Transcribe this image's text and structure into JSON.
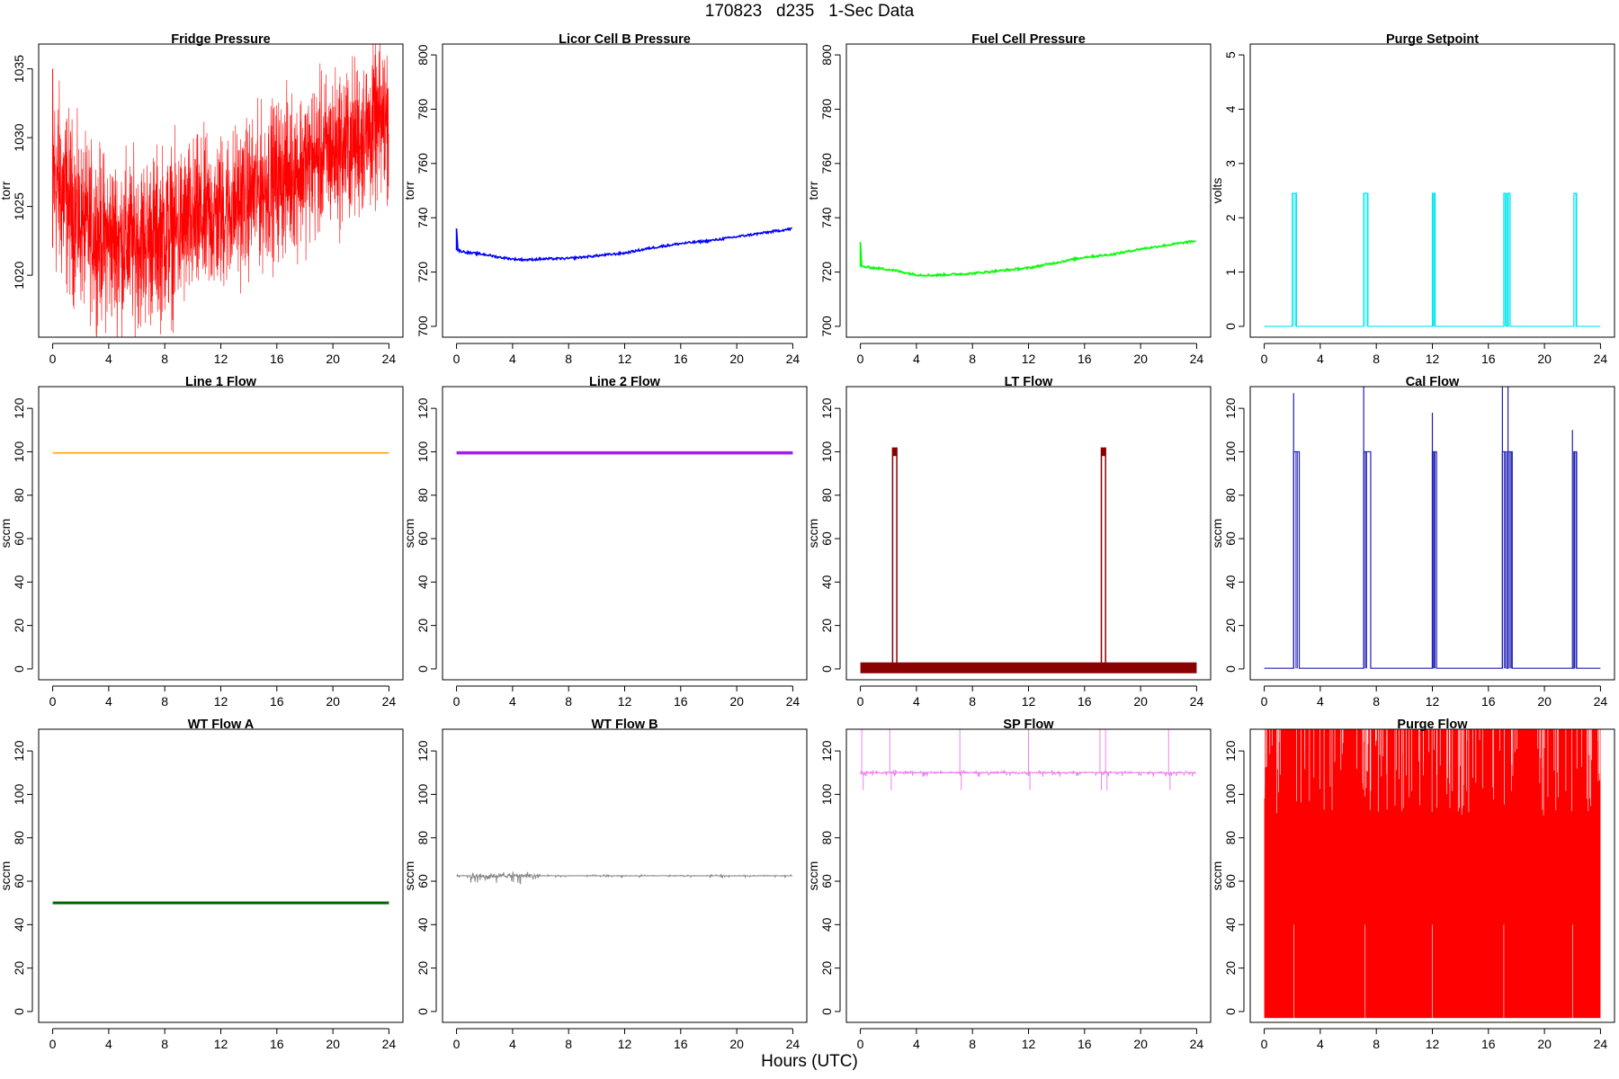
{
  "page": {
    "title": "170823   d235   1-Sec Data",
    "xlabel": "Hours (UTC)"
  },
  "chart_data": [
    {
      "type": "line",
      "title": "Fridge Pressure",
      "ylabel": "torr",
      "color": "#ff0000",
      "style": "noise",
      "xlim": [
        -1,
        25
      ],
      "ylim": [
        1015.5,
        1036.8
      ],
      "xticks": [
        0,
        4,
        8,
        12,
        16,
        20,
        24
      ],
      "yticks": [
        1020,
        1025,
        1030,
        1035
      ],
      "x": [
        0,
        2,
        4,
        6,
        8,
        10,
        12,
        14,
        16,
        18,
        20,
        22,
        24
      ],
      "upper": [
        1034.5,
        1029.5,
        1028.5,
        1028.3,
        1029,
        1029.5,
        1030,
        1031,
        1032.5,
        1033.5,
        1034.5,
        1035.5,
        1037
      ],
      "lower": [
        1020,
        1018,
        1016.5,
        1016.5,
        1017,
        1018,
        1019,
        1020.5,
        1021.5,
        1022.5,
        1023.5,
        1024.5,
        1026
      ]
    },
    {
      "type": "line",
      "title": "Licor Cell B Pressure",
      "ylabel": "torr",
      "color": "#0000ff",
      "style": "line",
      "xlim": [
        -1,
        25
      ],
      "ylim": [
        696,
        804
      ],
      "xticks": [
        0,
        4,
        8,
        12,
        16,
        20,
        24
      ],
      "yticks": [
        700,
        720,
        740,
        760,
        780,
        800
      ],
      "x": [
        0,
        0.1,
        0.5,
        1,
        2,
        3,
        4,
        5,
        6,
        8,
        10,
        12,
        14,
        16,
        18,
        20,
        22,
        24
      ],
      "y": [
        736,
        728,
        727.5,
        727,
        726.5,
        725.5,
        724.8,
        724.5,
        724.8,
        725,
        726,
        727,
        729,
        730.5,
        731.5,
        733,
        734.5,
        736
      ]
    },
    {
      "type": "line",
      "title": "Fuel Cell Pressure",
      "ylabel": "torr",
      "color": "#00ff00",
      "style": "line",
      "xlim": [
        -1,
        25
      ],
      "ylim": [
        696,
        804
      ],
      "xticks": [
        0,
        4,
        8,
        12,
        16,
        20,
        24
      ],
      "yticks": [
        700,
        720,
        740,
        760,
        780,
        800
      ],
      "x": [
        0,
        0.1,
        0.5,
        1,
        2,
        3,
        4,
        5,
        6,
        8,
        10,
        12,
        14,
        16,
        18,
        20,
        22,
        24
      ],
      "y": [
        731,
        722,
        721.8,
        721.5,
        721,
        720,
        719,
        718.8,
        719,
        719.5,
        720.5,
        721.5,
        723.5,
        725.5,
        726.5,
        728.5,
        730,
        731.5
      ]
    },
    {
      "type": "line",
      "title": "Purge Setpoint",
      "ylabel": "volts",
      "color": "#00e5ee",
      "style": "pulse",
      "xlim": [
        -1,
        25
      ],
      "ylim": [
        -0.2,
        5.2
      ],
      "xticks": [
        0,
        4,
        8,
        12,
        16,
        20,
        24
      ],
      "yticks": [
        0,
        1,
        2,
        3,
        4,
        5
      ],
      "base": 0,
      "pulses": [
        [
          2.0,
          2.3,
          2.45
        ],
        [
          7.1,
          7.4,
          2.45
        ],
        [
          12.0,
          12.2,
          2.45
        ],
        [
          17.1,
          17.3,
          2.45
        ],
        [
          17.4,
          17.55,
          2.45
        ],
        [
          22.1,
          22.3,
          2.45
        ]
      ]
    },
    {
      "type": "line",
      "title": "Line 1 Flow",
      "ylabel": "sccm",
      "color": "#ffa500",
      "style": "flat",
      "xlim": [
        -1,
        25
      ],
      "ylim": [
        -5,
        130
      ],
      "xticks": [
        0,
        4,
        8,
        12,
        16,
        20,
        24
      ],
      "yticks": [
        0,
        20,
        40,
        60,
        80,
        100,
        120
      ],
      "y": 99.5,
      "width": 1.6
    },
    {
      "type": "line",
      "title": "Line 2 Flow",
      "ylabel": "sccm",
      "color": "#a020f0",
      "style": "flat",
      "xlim": [
        -1,
        25
      ],
      "ylim": [
        -5,
        130
      ],
      "xticks": [
        0,
        4,
        8,
        12,
        16,
        20,
        24
      ],
      "yticks": [
        0,
        20,
        40,
        60,
        80,
        100,
        120
      ],
      "y": 99.5,
      "width": 3.5
    },
    {
      "type": "line",
      "title": "LT Flow",
      "ylabel": "sccm",
      "color": "#8b0000",
      "style": "band-pulse",
      "xlim": [
        -1,
        25
      ],
      "ylim": [
        -5,
        130
      ],
      "xticks": [
        0,
        4,
        8,
        12,
        16,
        20,
        24
      ],
      "yticks": [
        0,
        20,
        40,
        60,
        80,
        100,
        120
      ],
      "band": [
        [
          0,
          0,
          3
        ],
        [
          24,
          0,
          3
        ]
      ],
      "pulses": [
        [
          2.3,
          2.6,
          102
        ],
        [
          17.2,
          17.5,
          102
        ]
      ]
    },
    {
      "type": "line",
      "title": "Cal Flow",
      "ylabel": "sccm",
      "color": "#1e1eb4",
      "style": "pulse",
      "xlim": [
        -1,
        25
      ],
      "ylim": [
        -5,
        130
      ],
      "xticks": [
        0,
        4,
        8,
        12,
        16,
        20,
        24
      ],
      "yticks": [
        0,
        20,
        40,
        60,
        80,
        100,
        120
      ],
      "base": 0.3,
      "pulses": [
        [
          2.1,
          2.5,
          100
        ],
        [
          7.1,
          7.6,
          100
        ],
        [
          12.0,
          12.3,
          100
        ],
        [
          17.0,
          17.3,
          100
        ],
        [
          17.4,
          17.7,
          100
        ],
        [
          22.1,
          22.3,
          100
        ]
      ],
      "spikes": [
        [
          2.1,
          127
        ],
        [
          7.1,
          131
        ],
        [
          12.0,
          118
        ],
        [
          17.0,
          131
        ],
        [
          17.4,
          131
        ],
        [
          22.0,
          110
        ]
      ]
    },
    {
      "type": "line",
      "title": "WT Flow A",
      "ylabel": "sccm",
      "color": "#006400",
      "style": "flat",
      "xlim": [
        -1,
        25
      ],
      "ylim": [
        -5,
        130
      ],
      "xticks": [
        0,
        4,
        8,
        12,
        16,
        20,
        24
      ],
      "yticks": [
        0,
        20,
        40,
        60,
        80,
        100,
        120
      ],
      "y": 50,
      "width": 3
    },
    {
      "type": "line",
      "title": "WT Flow B",
      "ylabel": "sccm",
      "color": "#888888",
      "style": "jitter",
      "xlim": [
        -1,
        25
      ],
      "ylim": [
        -5,
        130
      ],
      "xticks": [
        0,
        4,
        8,
        12,
        16,
        20,
        24
      ],
      "yticks": [
        0,
        20,
        40,
        60,
        80,
        100,
        120
      ],
      "y": 62.5,
      "amp": 4,
      "noisy_until": 6
    },
    {
      "type": "line",
      "title": "SP Flow",
      "ylabel": "sccm",
      "color": "#ee82ee",
      "style": "jitter-spikes",
      "xlim": [
        -1,
        25
      ],
      "ylim": [
        -5,
        130
      ],
      "xticks": [
        0,
        4,
        8,
        12,
        16,
        20,
        24
      ],
      "yticks": [
        0,
        20,
        40,
        60,
        80,
        100,
        120
      ],
      "y": 110,
      "amp": 4,
      "spikes": [
        [
          0.1,
          130
        ],
        [
          2.1,
          131
        ],
        [
          7.1,
          131
        ],
        [
          12.0,
          131
        ],
        [
          17.1,
          131
        ],
        [
          17.5,
          131
        ],
        [
          22.0,
          131
        ]
      ]
    },
    {
      "type": "line",
      "title": "Purge Flow",
      "ylabel": "sccm",
      "color": "#ff0000",
      "style": "fill",
      "xlim": [
        -1,
        25
      ],
      "ylim": [
        -5,
        130
      ],
      "xticks": [
        0,
        4,
        8,
        12,
        16,
        20,
        24
      ],
      "yticks": [
        0,
        20,
        40,
        60,
        80,
        100,
        120
      ],
      "range": [
        -3,
        130
      ]
    }
  ]
}
